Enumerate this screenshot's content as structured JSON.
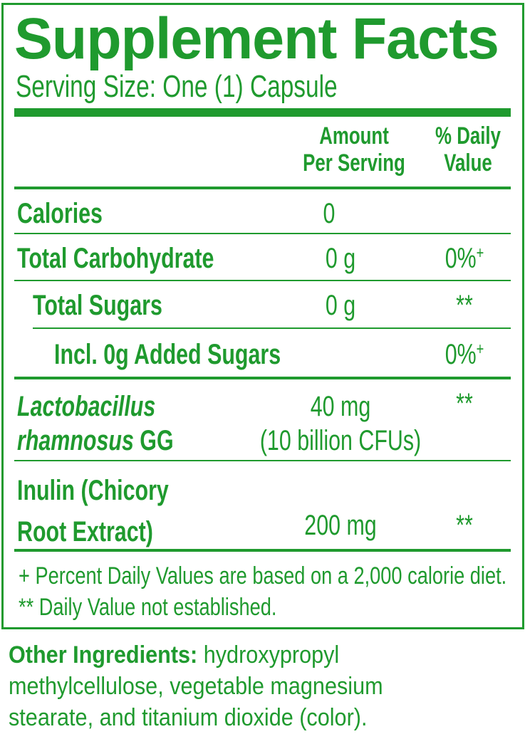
{
  "title": "Supplement Facts",
  "serving_size": "Serving Size: One (1) Capsule",
  "header": {
    "amount_line1": "Amount",
    "amount_line2": "Per Serving",
    "dv_line1": "% Daily",
    "dv_line2": "Value"
  },
  "rows": [
    {
      "name": "Calories",
      "amount": "0",
      "dv": ""
    },
    {
      "name": "Total Carbohydrate",
      "amount": "0 g",
      "dv": "0%",
      "dv_mark": "+"
    },
    {
      "name": "Total Sugars",
      "amount": "0 g",
      "dv": "**"
    },
    {
      "name": "Incl. 0g Added Sugars",
      "amount": "",
      "dv": "0%",
      "dv_mark": "+"
    },
    {
      "name_italic_1": "Lactobacillus",
      "name_italic_2": "rhamnosus",
      "name_suffix": " GG",
      "amount": "40 mg",
      "amount_2": "(10 billion CFUs)",
      "dv": "**"
    },
    {
      "name": "Inulin (Chicory",
      "name_2": "Root Extract)",
      "amount": "200 mg",
      "dv": "**"
    }
  ],
  "footnotes": [
    "+ Percent Daily Values are based on a 2,000 calorie diet.",
    "** Daily Value not established."
  ],
  "other_ingredients": {
    "label": "Other Ingredients:",
    "line1": " hydroxypropyl",
    "line2": "methylcellulose, vegetable magnesium",
    "line3": "stearate, and titanium dioxide (color)."
  },
  "colors": {
    "label_green": "#1f9a2e"
  }
}
